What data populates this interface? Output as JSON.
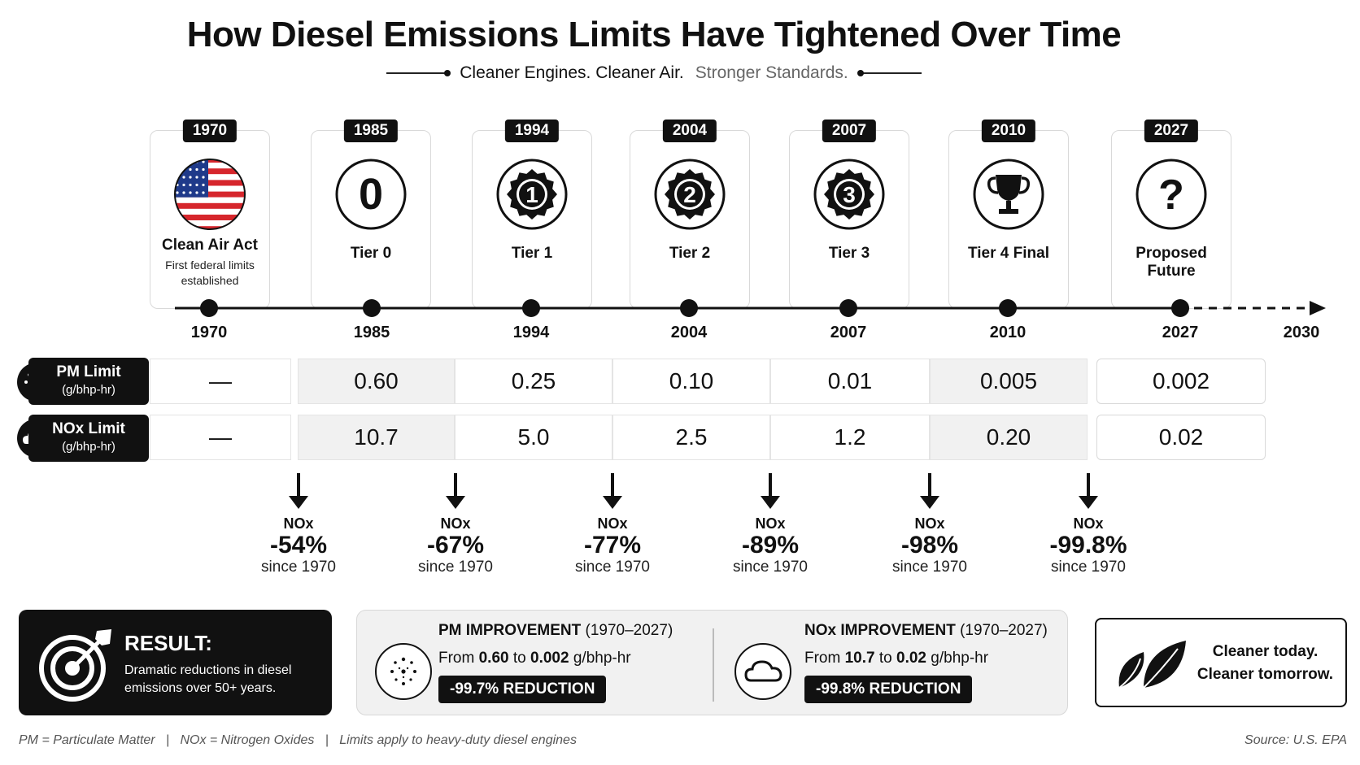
{
  "title": "How Diesel Emissions Limits Have Tightened Over Time",
  "subtitle": {
    "strong": "Cleaner Engines. Cleaner Air.",
    "light": "Stronger Standards."
  },
  "milestones": [
    {
      "year": "1970",
      "label": "Clean Air Act",
      "desc": "First federal limits established",
      "icon": "us-flag-icon"
    },
    {
      "year": "1985",
      "label": "Tier 0",
      "desc": "",
      "icon": "tier-0-icon",
      "badge_text": "0"
    },
    {
      "year": "1994",
      "label": "Tier 1",
      "desc": "",
      "icon": "tier-1-icon",
      "badge_text": "1"
    },
    {
      "year": "2004",
      "label": "Tier 2",
      "desc": "",
      "icon": "tier-2-icon",
      "badge_text": "2"
    },
    {
      "year": "2007",
      "label": "Tier 3",
      "desc": "",
      "icon": "tier-3-icon",
      "badge_text": "3"
    },
    {
      "year": "2010",
      "label": "Tier 4 Final",
      "desc": "",
      "icon": "trophy-icon"
    },
    {
      "year": "2027",
      "label": "Proposed Future",
      "desc": "",
      "icon": "question-icon",
      "badge_text": "?"
    }
  ],
  "timeline_ticks": [
    "1970",
    "1985",
    "1994",
    "2004",
    "2007",
    "2010",
    "2027",
    "2030"
  ],
  "rows": {
    "pm": {
      "label": "PM Limit",
      "unit": "(g/bhp-hr)",
      "icon": "particles-icon"
    },
    "nox": {
      "label": "NOx Limit",
      "unit": "(g/bhp-hr)",
      "icon": "cloud-icon"
    }
  },
  "chart_data": {
    "type": "table",
    "title": "How Diesel Emissions Limits Have Tightened Over Time",
    "columns": [
      "1970",
      "1985",
      "1994",
      "2004",
      "2007",
      "2010",
      "2027"
    ],
    "series": [
      {
        "name": "PM Limit (g/bhp-hr)",
        "values": [
          "—",
          "0.60",
          "0.25",
          "0.10",
          "0.01",
          "0.005",
          "0.002"
        ]
      },
      {
        "name": "NOx Limit (g/bhp-hr)",
        "values": [
          "—",
          "10.7",
          "5.0",
          "2.5",
          "1.2",
          "0.20",
          "0.02"
        ]
      }
    ],
    "nox_reductions_since_1970": [
      {
        "pct": "-54%"
      },
      {
        "pct": "-67%"
      },
      {
        "pct": "-77%"
      },
      {
        "pct": "-89%"
      },
      {
        "pct": "-98%"
      },
      {
        "pct": "-99.8%"
      }
    ]
  },
  "reductions": [
    {
      "pollutant": "NOx",
      "pct": "-54%",
      "since": "since 1970"
    },
    {
      "pollutant": "NOx",
      "pct": "-67%",
      "since": "since 1970"
    },
    {
      "pollutant": "NOx",
      "pct": "-77%",
      "since": "since 1970"
    },
    {
      "pollutant": "NOx",
      "pct": "-89%",
      "since": "since 1970"
    },
    {
      "pollutant": "NOx",
      "pct": "-98%",
      "since": "since 1970"
    },
    {
      "pollutant": "NOx",
      "pct": "-99.8%",
      "since": "since 1970"
    }
  ],
  "result": {
    "title": "RESULT:",
    "text": "Dramatic reductions in diesel emissions over 50+ years."
  },
  "pm_improvement": {
    "title": "PM IMPROVEMENT",
    "range": "(1970–2027)",
    "from_word": "From",
    "from": "0.60",
    "to_word": "to",
    "to": "0.002",
    "unit": "g/bhp-hr",
    "badge": "-99.7% REDUCTION"
  },
  "nox_improvement": {
    "title": "NOx IMPROVEMENT",
    "range": "(1970–2027)",
    "from_word": "From",
    "from": "10.7",
    "to_word": "to",
    "to": "0.02",
    "unit": "g/bhp-hr",
    "badge": "-99.8% REDUCTION"
  },
  "cleaner": {
    "line1": "Cleaner today.",
    "line2": "Cleaner tomorrow."
  },
  "footnote": "PM = Particulate Matter   |   NOx = Nitrogen Oxides   |   Limits apply to heavy-duty diesel engines",
  "source": "Source: U.S. EPA",
  "colors": {
    "ink": "#111111",
    "grey_cell": "#f1f1f1",
    "flag_red": "#d6262c",
    "flag_blue": "#1f3a8a"
  }
}
